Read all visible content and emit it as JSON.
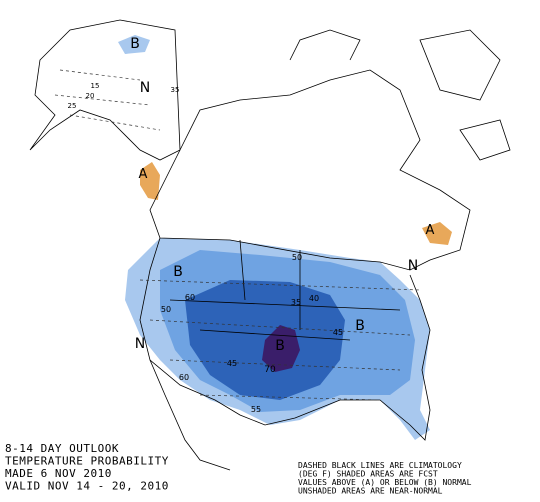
{
  "outlook": {
    "lines": [
      "8-14 DAY OUTLOOK",
      "TEMPERATURE PROBABILITY",
      "MADE  6 NOV 2010",
      "VALID  NOV 14 - 20, 2010"
    ]
  },
  "legend": {
    "lines": [
      "DASHED BLACK LINES ARE CLIMATOLOGY",
      "(DEG F) SHADED AREAS ARE FCST",
      "VALUES ABOVE (A) OR BELOW (B) NORMAL",
      "UNSHADED AREAS ARE NEAR-NORMAL"
    ]
  },
  "map_labels": [
    "B",
    "N",
    "15",
    "20",
    "25",
    "35",
    "A",
    "B",
    "60",
    "50",
    "N",
    "B",
    "70",
    "45",
    "60",
    "55",
    "N",
    "A",
    "B",
    "40",
    "50",
    "35",
    "45"
  ]
}
